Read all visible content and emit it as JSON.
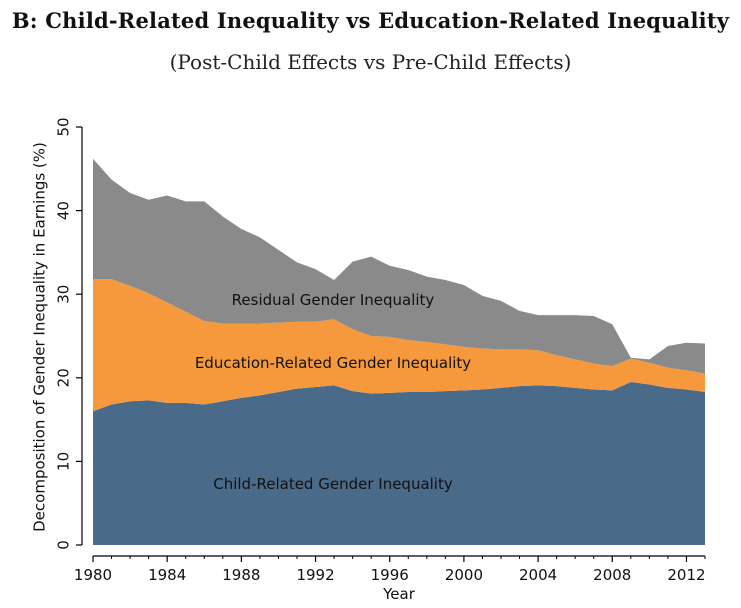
{
  "chart_data": {
    "type": "area",
    "stacked": true,
    "title": "B: Child-Related Inequality vs Education-Related Inequality",
    "subtitle": "(Post-Child Effects vs Pre-Child Effects)",
    "xlabel": "Year",
    "ylabel": "Decomposition of Gender Inequality in Earnings (%)",
    "xlim": [
      1980,
      2013
    ],
    "ylim": [
      0,
      50
    ],
    "x_ticks": [
      1980,
      1984,
      1988,
      1992,
      1996,
      2000,
      2004,
      2008,
      2012
    ],
    "y_ticks": [
      0,
      10,
      20,
      30,
      40,
      50
    ],
    "grid": false,
    "legend": "none",
    "x": [
      1980,
      1981,
      1982,
      1983,
      1984,
      1985,
      1986,
      1987,
      1988,
      1989,
      1990,
      1991,
      1992,
      1993,
      1994,
      1995,
      1996,
      1997,
      1998,
      1999,
      2000,
      2001,
      2002,
      2003,
      2004,
      2005,
      2006,
      2007,
      2008,
      2009,
      2010,
      2011,
      2012,
      2013
    ],
    "series": [
      {
        "label": "Child-Related Gender Inequality",
        "color": "#4a6a8a",
        "values": [
          16.0,
          16.8,
          17.2,
          17.3,
          17.0,
          17.0,
          16.8,
          17.2,
          17.6,
          17.9,
          18.3,
          18.7,
          18.9,
          19.1,
          18.4,
          18.1,
          18.2,
          18.3,
          18.3,
          18.4,
          18.5,
          18.6,
          18.8,
          19.0,
          19.1,
          19.0,
          18.8,
          18.6,
          18.5,
          19.5,
          19.2,
          18.8,
          18.6,
          18.3
        ]
      },
      {
        "label": "Education-Related Gender Inequality",
        "color": "#f5993c",
        "values": [
          15.8,
          15.0,
          13.8,
          12.8,
          12.0,
          10.9,
          10.0,
          9.3,
          8.9,
          8.6,
          8.3,
          8.0,
          7.8,
          7.9,
          7.4,
          6.9,
          6.7,
          6.2,
          6.0,
          5.6,
          5.2,
          4.9,
          4.6,
          4.4,
          4.2,
          3.7,
          3.4,
          3.1,
          2.9,
          2.8,
          2.6,
          2.4,
          2.3,
          2.2
        ]
      },
      {
        "label": "Residual Gender Inequality",
        "color": "#8a8a8a",
        "values": [
          14.4,
          11.9,
          11.1,
          11.2,
          12.8,
          13.2,
          14.3,
          12.8,
          11.3,
          10.3,
          8.7,
          7.1,
          6.3,
          4.7,
          8.1,
          9.5,
          8.5,
          8.4,
          7.8,
          7.7,
          7.4,
          6.3,
          5.8,
          4.6,
          4.2,
          4.8,
          5.3,
          5.7,
          5.0,
          0.1,
          0.4,
          2.6,
          3.3,
          3.6
        ]
      }
    ]
  },
  "colors": {
    "child": "#4a6a8a",
    "education": "#f5993c",
    "residual": "#8a8a8a",
    "axis": "#000000"
  }
}
